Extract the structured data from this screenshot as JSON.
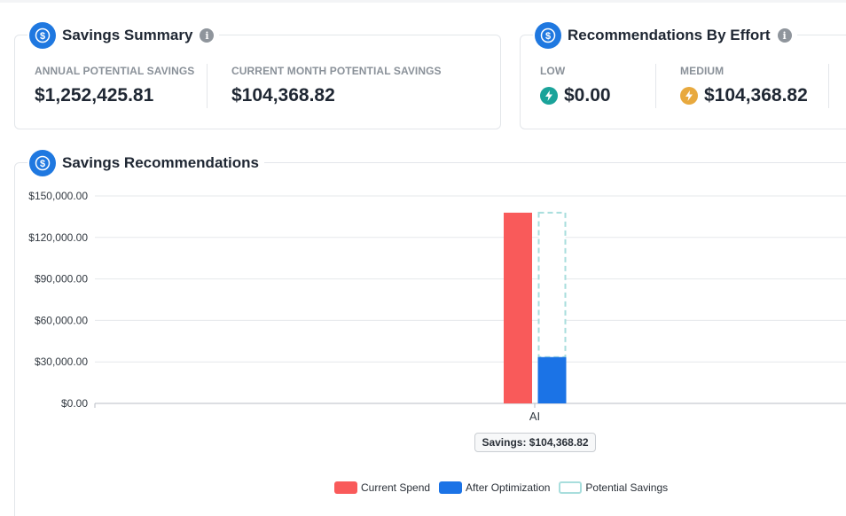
{
  "savings_summary": {
    "title": "Savings Summary",
    "annual_label": "ANNUAL POTENTIAL SAVINGS",
    "annual_value": "$1,252,425.81",
    "month_label": "CURRENT MONTH POTENTIAL SAVINGS",
    "month_value": "$104,368.82"
  },
  "effort": {
    "title": "Recommendations By Effort",
    "low_label": "LOW",
    "low_value": "$0.00",
    "low_color": "#1aa39a",
    "medium_label": "MEDIUM",
    "medium_value": "$104,368.82",
    "medium_color": "#e8a93e"
  },
  "recommendations": {
    "title": "Savings Recommendations",
    "tooltip": "Savings: $104,368.82"
  },
  "chart_data": {
    "type": "bar",
    "categories": [
      "AI"
    ],
    "series": [
      {
        "name": "Current Spend",
        "values": [
          137900
        ],
        "color": "#f95a5a"
      },
      {
        "name": "After Optimization",
        "values": [
          33500
        ],
        "color": "#1b73e6"
      },
      {
        "name": "Potential Savings",
        "values": [
          104368.82
        ],
        "color": "#a8dedd",
        "style": "dashed-outline, stacked above After Optimization"
      }
    ],
    "ylim": [
      0,
      150000
    ],
    "yticks": [
      "$0.00",
      "$30,000.00",
      "$60,000.00",
      "$90,000.00",
      "$120,000.00",
      "$150,000.00"
    ],
    "ytick_values": [
      0,
      30000,
      60000,
      90000,
      120000,
      150000
    ],
    "grid": true,
    "legend": "bottom-center"
  },
  "icons": {
    "header": "dollar-circle-icon",
    "low": "lightning-icon",
    "medium": "lightning-icon",
    "info": "info-icon"
  }
}
